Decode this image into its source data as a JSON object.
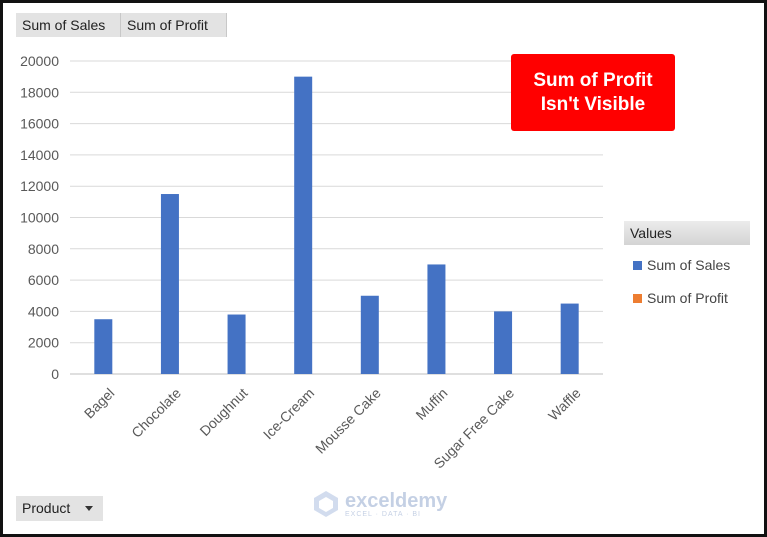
{
  "field_buttons": {
    "sum_of_sales": "Sum of Sales",
    "sum_of_profit": "Sum of Profit"
  },
  "callout": {
    "line1": "Sum of Profit",
    "line2": "Isn't Visible",
    "color": "#ff0000"
  },
  "legend": {
    "header": "Values",
    "items": [
      {
        "label": "Sum of Sales",
        "color": "#4472c4"
      },
      {
        "label": "Sum of Profit",
        "color": "#ed7d31"
      }
    ]
  },
  "product_filter": {
    "label": "Product"
  },
  "watermark": {
    "name": "exceldemy",
    "tagline": "EXCEL · DATA · BI"
  },
  "chart_data": {
    "type": "bar",
    "categories": [
      "Bagel",
      "Chocolate",
      "Doughnut",
      "Ice-Cream",
      "Mousse Cake",
      "Muffin",
      "Sugar Free Cake",
      "Waffle"
    ],
    "series": [
      {
        "name": "Sum of Sales",
        "color": "#4472c4",
        "values": [
          3500,
          11500,
          3800,
          19000,
          5000,
          7000,
          4000,
          4500
        ]
      }
    ],
    "ylim": [
      0,
      20000
    ],
    "yticks": [
      0,
      2000,
      4000,
      6000,
      8000,
      10000,
      12000,
      14000,
      16000,
      18000,
      20000
    ],
    "grid": true,
    "legend_position": "right",
    "title": "",
    "xlabel": "",
    "ylabel": ""
  }
}
